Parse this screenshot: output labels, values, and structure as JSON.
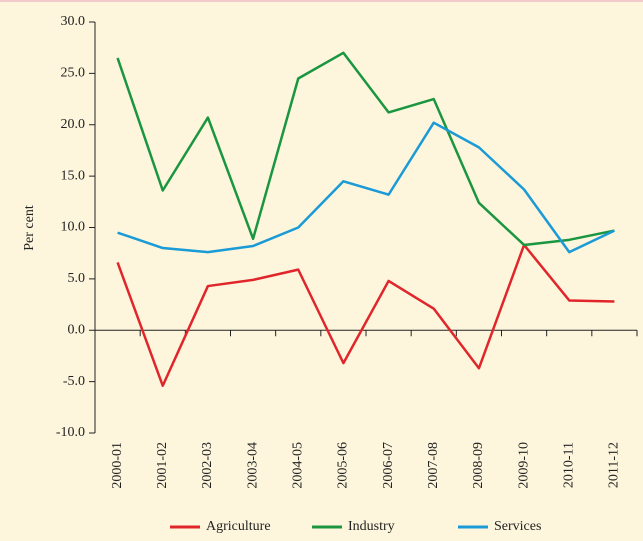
{
  "chart_data": {
    "type": "line",
    "y_label": "Per cent",
    "categories": [
      "2000-01",
      "2001-02",
      "2002-03",
      "2003-04",
      "2004-05",
      "2005-06",
      "2006-07",
      "2007-08",
      "2008-09",
      "2009-10",
      "2010-11",
      "2011-12"
    ],
    "series": [
      {
        "name": "Agriculture",
        "color": "#e0262b",
        "values": [
          6.6,
          -5.4,
          4.3,
          4.9,
          5.9,
          -3.2,
          4.8,
          2.1,
          -3.7,
          8.3,
          2.9,
          2.8
        ]
      },
      {
        "name": "Industry",
        "color": "#1a9640",
        "values": [
          26.5,
          13.6,
          20.7,
          8.9,
          24.5,
          27.0,
          21.2,
          22.5,
          12.4,
          8.3,
          8.8,
          9.7
        ]
      },
      {
        "name": "Services",
        "color": "#1a9ad6",
        "values": [
          9.5,
          8.0,
          7.6,
          8.2,
          10.0,
          14.5,
          13.2,
          20.2,
          17.8,
          13.7,
          7.6,
          9.7
        ]
      }
    ],
    "ylim": [
      -10,
      30
    ],
    "yticks": [
      {
        "value": -10,
        "label": "-10.0"
      },
      {
        "value": -5,
        "label": "-5.0"
      },
      {
        "value": 0,
        "label": "0.0"
      },
      {
        "value": 5,
        "label": "5.0"
      },
      {
        "value": 10,
        "label": "10.0"
      },
      {
        "value": 15,
        "label": "15.0"
      },
      {
        "value": 20,
        "label": "20.0"
      },
      {
        "value": 25,
        "label": "25.0"
      },
      {
        "value": 30,
        "label": "30.0"
      }
    ],
    "legend": "bottom"
  }
}
